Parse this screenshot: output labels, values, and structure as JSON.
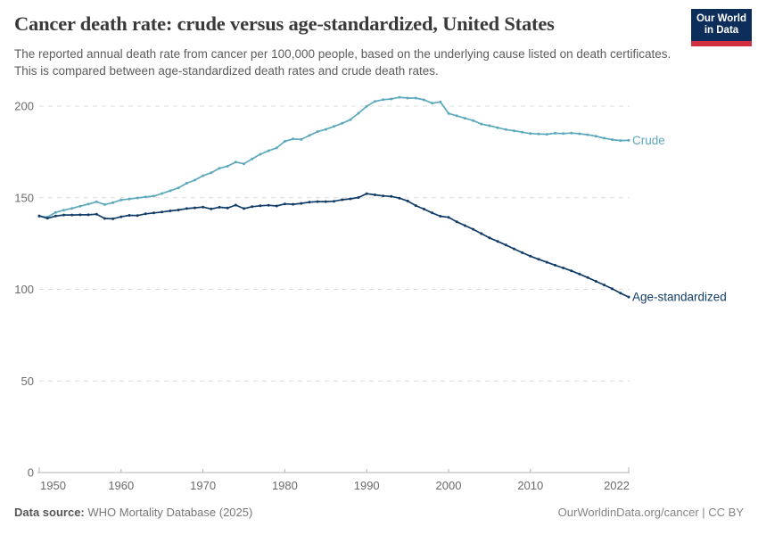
{
  "header": {
    "title": "Cancer death rate: crude versus age-standardized, United States",
    "subtitle": "The reported annual death rate from cancer per 100,000 people, based on the underlying cause listed on death certificates. This is compared between age-standardized death rates and crude death rates.",
    "logo": {
      "line1": "Our World",
      "line2": "in Data",
      "bg_color": "#0d2e5b",
      "bar_color": "#cf2f3f"
    }
  },
  "footer": {
    "source_label": "Data source:",
    "source_value": " WHO Mortality Database (2025)",
    "attribution": "OurWorldinData.org/cancer | CC BY"
  },
  "chart_data": {
    "type": "line",
    "title": "Cancer death rate: crude versus age-standardized, United States",
    "xlabel": "",
    "ylabel": "",
    "unit": "deaths per 100,000 people",
    "grid": "horizontal-dashed",
    "legend_position": "end-of-line-labels",
    "ylim": [
      0,
      210
    ],
    "yticks": [
      0,
      50,
      100,
      150,
      200
    ],
    "xticks": [
      1950,
      1960,
      1970,
      1980,
      1990,
      2000,
      2010,
      2022
    ],
    "x": [
      1950,
      1951,
      1952,
      1953,
      1954,
      1955,
      1956,
      1957,
      1958,
      1959,
      1960,
      1961,
      1962,
      1963,
      1964,
      1965,
      1966,
      1967,
      1968,
      1969,
      1970,
      1971,
      1972,
      1973,
      1974,
      1975,
      1976,
      1977,
      1978,
      1979,
      1980,
      1981,
      1982,
      1983,
      1984,
      1985,
      1986,
      1987,
      1988,
      1989,
      1990,
      1991,
      1992,
      1993,
      1994,
      1995,
      1996,
      1997,
      1998,
      1999,
      2000,
      2001,
      2002,
      2003,
      2004,
      2005,
      2006,
      2007,
      2008,
      2009,
      2010,
      2011,
      2012,
      2013,
      2014,
      2015,
      2016,
      2017,
      2018,
      2019,
      2020,
      2021,
      2022
    ],
    "series": [
      {
        "name": "Crude",
        "color": "#5da9bc",
        "values": [
          139.8,
          139.4,
          142.0,
          143.2,
          144.2,
          145.4,
          146.5,
          147.8,
          146.3,
          147.3,
          148.8,
          149.3,
          149.9,
          150.4,
          150.9,
          152.3,
          153.8,
          155.4,
          157.9,
          159.6,
          162.0,
          163.6,
          166.1,
          167.2,
          169.5,
          168.5,
          171.2,
          173.7,
          175.6,
          177.2,
          180.8,
          182.1,
          181.8,
          184.0,
          186.1,
          187.3,
          188.9,
          190.6,
          192.6,
          196.1,
          199.9,
          202.6,
          203.5,
          203.9,
          204.8,
          204.4,
          204.4,
          203.4,
          201.6,
          202.3,
          196.0,
          194.7,
          193.4,
          192.1,
          190.2,
          189.3,
          188.2,
          187.2,
          186.5,
          185.8,
          185.0,
          184.8,
          184.6,
          185.2,
          185.0,
          185.3,
          184.9,
          184.4,
          183.6,
          182.5,
          181.7,
          181.2,
          181.3
        ]
      },
      {
        "name": "Age-standardized",
        "color": "#123c68",
        "values": [
          140.1,
          138.8,
          140.0,
          140.6,
          140.6,
          140.7,
          140.7,
          141.0,
          138.7,
          138.5,
          139.6,
          140.4,
          140.3,
          141.2,
          141.7,
          142.2,
          142.8,
          143.3,
          144.1,
          144.5,
          144.9,
          143.9,
          144.8,
          144.4,
          146.0,
          144.1,
          145.1,
          145.6,
          145.9,
          145.5,
          146.6,
          146.4,
          146.9,
          147.6,
          147.9,
          147.9,
          148.1,
          148.9,
          149.4,
          150.1,
          152.2,
          151.6,
          151.0,
          150.7,
          149.8,
          148.2,
          145.7,
          143.8,
          141.7,
          139.9,
          139.3,
          136.9,
          134.8,
          132.8,
          130.4,
          128.1,
          126.2,
          124.2,
          122.1,
          120.0,
          118.1,
          116.4,
          114.8,
          113.2,
          111.7,
          110.1,
          108.3,
          106.4,
          104.4,
          102.4,
          100.3,
          97.9,
          95.8
        ]
      }
    ]
  }
}
